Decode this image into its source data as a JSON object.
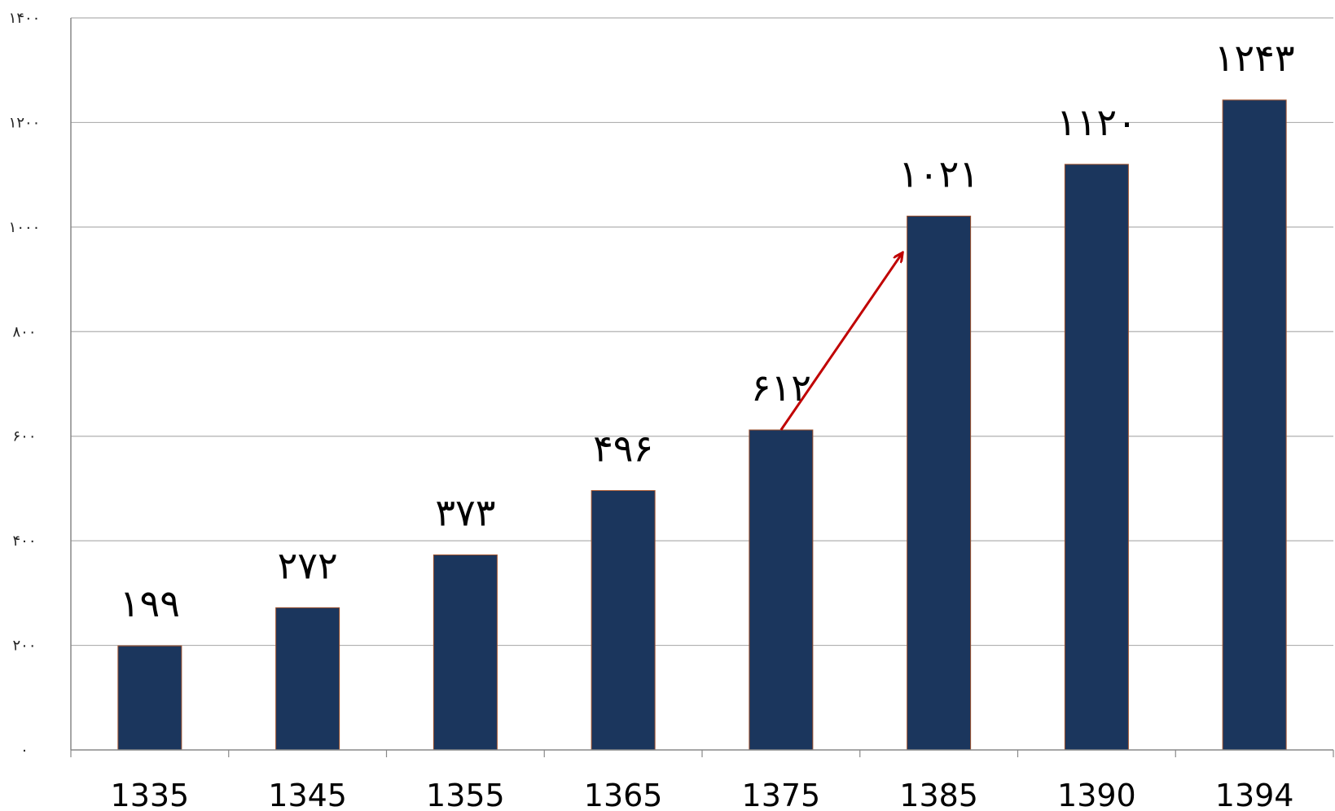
{
  "chart_data": {
    "type": "bar",
    "title": "",
    "xlabel": "",
    "ylabel": "",
    "categories": [
      "1335",
      "1345",
      "1355",
      "1365",
      "1375",
      "1385",
      "1390",
      "1394"
    ],
    "values": [
      199,
      272,
      373,
      496,
      612,
      1021,
      1120,
      1243
    ],
    "data_labels": [
      "۱۹۹",
      "۲۷۲",
      "۳۷۳",
      "۴۹۶",
      "۶۱۲",
      "۱۰۲۱",
      "۱۱۲۰",
      "۱۲۴۳"
    ],
    "ylim": [
      0,
      1400
    ],
    "yticks": [
      0,
      200,
      400,
      600,
      800,
      1000,
      1200,
      1400
    ],
    "ytick_labels": [
      "۰",
      "۲۰۰",
      "۴۰۰",
      "۶۰۰",
      "۸۰۰",
      "۱۰۰۰",
      "۱۲۰۰",
      "۱۴۰۰"
    ],
    "grid": true,
    "legend": "none",
    "annotation": {
      "type": "arrow",
      "from": {
        "category": "1375",
        "value": 612
      },
      "to": {
        "category": "1385",
        "value": 950
      },
      "color": "#c00000"
    },
    "colors": {
      "bar": "#1b365d",
      "bar_edge": "#a0522d",
      "grid": "#b0b0b0",
      "axis": "#888888"
    }
  }
}
